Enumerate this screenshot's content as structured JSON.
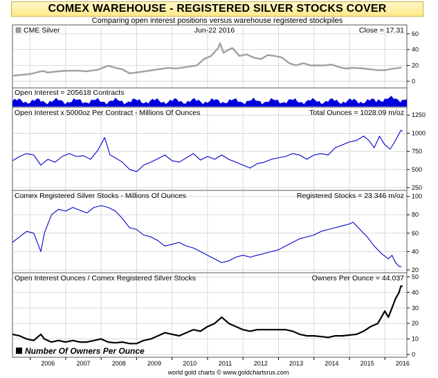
{
  "title": "COMEX WAREHOUSE - REGISTERED SILVER STOCKS COVER",
  "subtitle": "Comparing open interest positions versus warehouse registered stockpiles",
  "footer": "world gold charts © www.goldchartsrus.com",
  "chart_data": {
    "type": "line",
    "x_labels": [
      "2006",
      "2007",
      "2008",
      "2009",
      "2010",
      "2011",
      "2012",
      "2013",
      "2014",
      "2015",
      "2016"
    ],
    "x_range": [
      2005.5,
      2016.62
    ],
    "panels": [
      {
        "id": "silver",
        "label": "CME Silver",
        "date_label": "Jun-22  2016",
        "value_label": "Close = 17.31",
        "color": "#a0a0a0",
        "yticks": [
          0,
          20,
          40,
          60
        ],
        "ylim": [
          -5,
          66
        ],
        "series": [
          [
            2005.5,
            7
          ],
          [
            2006.0,
            9
          ],
          [
            2006.35,
            13
          ],
          [
            2006.5,
            11
          ],
          [
            2006.9,
            13
          ],
          [
            2007.3,
            13.5
          ],
          [
            2007.6,
            12.5
          ],
          [
            2007.9,
            14.5
          ],
          [
            2008.2,
            19.5
          ],
          [
            2008.4,
            17
          ],
          [
            2008.6,
            15
          ],
          [
            2008.8,
            10
          ],
          [
            2009.0,
            11
          ],
          [
            2009.3,
            13
          ],
          [
            2009.6,
            15
          ],
          [
            2009.9,
            17
          ],
          [
            2010.1,
            16
          ],
          [
            2010.4,
            18
          ],
          [
            2010.7,
            20
          ],
          [
            2010.9,
            28
          ],
          [
            2011.1,
            32
          ],
          [
            2011.3,
            42
          ],
          [
            2011.35,
            48
          ],
          [
            2011.45,
            36
          ],
          [
            2011.6,
            40
          ],
          [
            2011.7,
            42
          ],
          [
            2011.9,
            32
          ],
          [
            2012.1,
            34
          ],
          [
            2012.3,
            30
          ],
          [
            2012.5,
            28
          ],
          [
            2012.7,
            33
          ],
          [
            2012.9,
            32
          ],
          [
            2013.1,
            30
          ],
          [
            2013.3,
            23
          ],
          [
            2013.5,
            20
          ],
          [
            2013.7,
            23
          ],
          [
            2013.9,
            20
          ],
          [
            2014.1,
            20
          ],
          [
            2014.3,
            20
          ],
          [
            2014.5,
            21
          ],
          [
            2014.7,
            18
          ],
          [
            2014.9,
            16
          ],
          [
            2015.1,
            17
          ],
          [
            2015.4,
            16
          ],
          [
            2015.6,
            15
          ],
          [
            2015.8,
            14
          ],
          [
            2016.0,
            14
          ],
          [
            2016.2,
            15.5
          ],
          [
            2016.4,
            17
          ],
          [
            2016.47,
            17.3
          ]
        ]
      },
      {
        "id": "open_interest",
        "label": "Open Interest = 205618 Contracts",
        "color": "#0000dd"
      },
      {
        "id": "oi_ounces",
        "label": "Open Interest x 5000oz Per Contract - Millions Of Ounces",
        "value_label": "Total Ounces = 1028.09 m/oz",
        "color": "#0000cc",
        "yticks": [
          250,
          500,
          750,
          1000,
          1250
        ],
        "ylim": [
          250,
          1300
        ],
        "series": [
          [
            2005.5,
            620
          ],
          [
            2005.7,
            680
          ],
          [
            2005.9,
            720
          ],
          [
            2006.1,
            700
          ],
          [
            2006.3,
            560
          ],
          [
            2006.5,
            640
          ],
          [
            2006.7,
            600
          ],
          [
            2006.9,
            680
          ],
          [
            2007.1,
            720
          ],
          [
            2007.3,
            680
          ],
          [
            2007.5,
            690
          ],
          [
            2007.7,
            640
          ],
          [
            2007.9,
            760
          ],
          [
            2008.1,
            940
          ],
          [
            2008.25,
            700
          ],
          [
            2008.4,
            660
          ],
          [
            2008.6,
            600
          ],
          [
            2008.8,
            500
          ],
          [
            2009.0,
            470
          ],
          [
            2009.2,
            560
          ],
          [
            2009.4,
            600
          ],
          [
            2009.6,
            650
          ],
          [
            2009.8,
            700
          ],
          [
            2010.0,
            620
          ],
          [
            2010.2,
            600
          ],
          [
            2010.4,
            660
          ],
          [
            2010.6,
            720
          ],
          [
            2010.8,
            630
          ],
          [
            2011.0,
            680
          ],
          [
            2011.2,
            640
          ],
          [
            2011.4,
            700
          ],
          [
            2011.6,
            640
          ],
          [
            2011.8,
            600
          ],
          [
            2012.0,
            560
          ],
          [
            2012.2,
            520
          ],
          [
            2012.4,
            580
          ],
          [
            2012.6,
            600
          ],
          [
            2012.8,
            640
          ],
          [
            2013.0,
            660
          ],
          [
            2013.2,
            680
          ],
          [
            2013.4,
            720
          ],
          [
            2013.6,
            700
          ],
          [
            2013.8,
            640
          ],
          [
            2014.0,
            700
          ],
          [
            2014.2,
            720
          ],
          [
            2014.4,
            700
          ],
          [
            2014.6,
            800
          ],
          [
            2014.8,
            840
          ],
          [
            2015.0,
            880
          ],
          [
            2015.2,
            900
          ],
          [
            2015.4,
            960
          ],
          [
            2015.55,
            900
          ],
          [
            2015.7,
            800
          ],
          [
            2015.85,
            960
          ],
          [
            2016.0,
            840
          ],
          [
            2016.15,
            780
          ],
          [
            2016.3,
            900
          ],
          [
            2016.45,
            1040
          ],
          [
            2016.5,
            1028
          ]
        ]
      },
      {
        "id": "registered",
        "label": "Comex Registered Silver Stocks - Millions Of Ounces",
        "value_label": "Registered Stocks = 23.346 m/oz",
        "color": "#0000cc",
        "yticks": [
          20,
          40,
          60,
          80,
          100
        ],
        "ylim": [
          20,
          102
        ],
        "series": [
          [
            2005.5,
            50
          ],
          [
            2005.7,
            56
          ],
          [
            2005.9,
            62
          ],
          [
            2006.1,
            60
          ],
          [
            2006.3,
            40
          ],
          [
            2006.4,
            60
          ],
          [
            2006.6,
            80
          ],
          [
            2006.8,
            86
          ],
          [
            2007.0,
            84
          ],
          [
            2007.2,
            88
          ],
          [
            2007.4,
            85
          ],
          [
            2007.6,
            82
          ],
          [
            2007.8,
            88
          ],
          [
            2008.0,
            90
          ],
          [
            2008.2,
            88
          ],
          [
            2008.4,
            84
          ],
          [
            2008.6,
            76
          ],
          [
            2008.8,
            66
          ],
          [
            2009.0,
            64
          ],
          [
            2009.2,
            58
          ],
          [
            2009.4,
            56
          ],
          [
            2009.6,
            52
          ],
          [
            2009.8,
            46
          ],
          [
            2010.0,
            48
          ],
          [
            2010.2,
            50
          ],
          [
            2010.4,
            46
          ],
          [
            2010.6,
            44
          ],
          [
            2010.8,
            40
          ],
          [
            2011.0,
            36
          ],
          [
            2011.2,
            32
          ],
          [
            2011.4,
            28
          ],
          [
            2011.6,
            30
          ],
          [
            2011.8,
            34
          ],
          [
            2012.0,
            36
          ],
          [
            2012.2,
            34
          ],
          [
            2012.4,
            36
          ],
          [
            2012.6,
            38
          ],
          [
            2012.8,
            40
          ],
          [
            2013.0,
            42
          ],
          [
            2013.2,
            46
          ],
          [
            2013.4,
            50
          ],
          [
            2013.6,
            54
          ],
          [
            2013.8,
            56
          ],
          [
            2014.0,
            58
          ],
          [
            2014.2,
            62
          ],
          [
            2014.4,
            64
          ],
          [
            2014.6,
            66
          ],
          [
            2014.8,
            68
          ],
          [
            2015.0,
            70
          ],
          [
            2015.1,
            72
          ],
          [
            2015.3,
            64
          ],
          [
            2015.5,
            56
          ],
          [
            2015.7,
            46
          ],
          [
            2015.9,
            38
          ],
          [
            2016.1,
            32
          ],
          [
            2016.2,
            36
          ],
          [
            2016.3,
            28
          ],
          [
            2016.4,
            24
          ],
          [
            2016.47,
            23.3
          ]
        ]
      },
      {
        "id": "owners",
        "label": "Open Interest Ounces / Comex Registered Silver Stocks",
        "value_label": "Owners Per Ounce = 44.037",
        "legend": "Number Of Owners Per Ounce",
        "color": "#000000",
        "yticks": [
          0,
          10,
          20,
          30,
          40,
          50
        ],
        "ylim": [
          0,
          50
        ],
        "series": [
          [
            2005.5,
            13
          ],
          [
            2005.7,
            12
          ],
          [
            2005.9,
            10
          ],
          [
            2006.1,
            9
          ],
          [
            2006.3,
            13
          ],
          [
            2006.4,
            10
          ],
          [
            2006.6,
            8
          ],
          [
            2006.8,
            9
          ],
          [
            2007.0,
            8
          ],
          [
            2007.2,
            9
          ],
          [
            2007.4,
            8
          ],
          [
            2007.6,
            8
          ],
          [
            2007.8,
            9
          ],
          [
            2008.0,
            10
          ],
          [
            2008.2,
            8
          ],
          [
            2008.4,
            7.5
          ],
          [
            2008.6,
            8
          ],
          [
            2008.8,
            7
          ],
          [
            2009.0,
            7
          ],
          [
            2009.2,
            9
          ],
          [
            2009.4,
            10
          ],
          [
            2009.6,
            12
          ],
          [
            2009.8,
            14
          ],
          [
            2010.0,
            13
          ],
          [
            2010.2,
            12
          ],
          [
            2010.4,
            14
          ],
          [
            2010.6,
            16
          ],
          [
            2010.8,
            15
          ],
          [
            2011.0,
            18
          ],
          [
            2011.2,
            20
          ],
          [
            2011.4,
            24
          ],
          [
            2011.6,
            20
          ],
          [
            2011.8,
            18
          ],
          [
            2012.0,
            16
          ],
          [
            2012.2,
            15
          ],
          [
            2012.4,
            16
          ],
          [
            2012.6,
            16
          ],
          [
            2012.8,
            16
          ],
          [
            2013.0,
            16
          ],
          [
            2013.2,
            16
          ],
          [
            2013.4,
            15
          ],
          [
            2013.6,
            13
          ],
          [
            2013.8,
            12
          ],
          [
            2014.0,
            12
          ],
          [
            2014.2,
            11.5
          ],
          [
            2014.4,
            11
          ],
          [
            2014.6,
            12
          ],
          [
            2014.8,
            12
          ],
          [
            2015.0,
            12.5
          ],
          [
            2015.2,
            13
          ],
          [
            2015.4,
            15
          ],
          [
            2015.6,
            18
          ],
          [
            2015.8,
            20
          ],
          [
            2016.0,
            28
          ],
          [
            2016.1,
            24
          ],
          [
            2016.2,
            30
          ],
          [
            2016.3,
            36
          ],
          [
            2016.4,
            40
          ],
          [
            2016.45,
            44
          ],
          [
            2016.5,
            44
          ]
        ]
      }
    ]
  }
}
